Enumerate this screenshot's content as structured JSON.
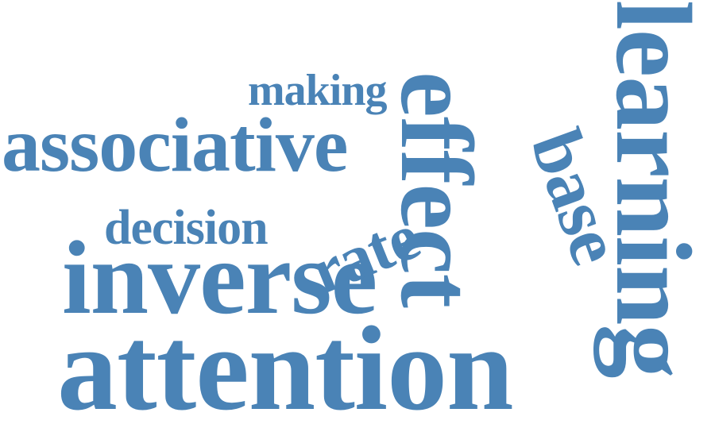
{
  "word_cloud": {
    "color": "#4a83b6",
    "background": "#ffffff",
    "words": {
      "making": "making",
      "associative": "associative",
      "decision": "decision",
      "inverse": "inverse",
      "attention": "attention",
      "rate": "rate",
      "effect": "effect",
      "base": "base",
      "learning": "learning"
    }
  }
}
